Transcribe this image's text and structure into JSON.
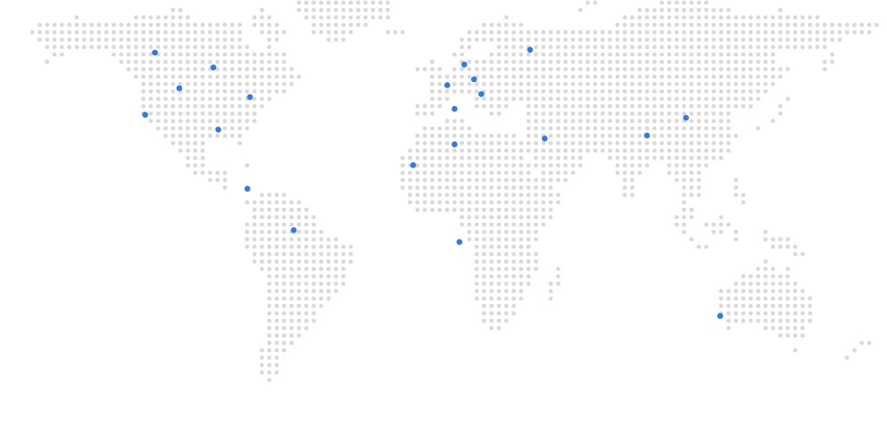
{
  "map": {
    "style": "dotted-world-map",
    "colors": {
      "land_dot": "#d9d9d9",
      "marker": "#2f7be5",
      "background": "#ffffff"
    },
    "grid_spacing": 8.3,
    "markers": [
      {
        "id": "north-america-north",
        "lat": 59,
        "lon": -117
      },
      {
        "id": "north-america-canada-east",
        "lat": 54,
        "lon": -93
      },
      {
        "id": "north-america-west",
        "lat": 47,
        "lon": -107
      },
      {
        "id": "north-america-east",
        "lat": 44,
        "lon": -78
      },
      {
        "id": "north-america-pacific",
        "lat": 38,
        "lon": -121
      },
      {
        "id": "north-america-south",
        "lat": 33,
        "lon": -91
      },
      {
        "id": "south-america-north",
        "lat": 13,
        "lon": -79
      },
      {
        "id": "south-america-brazil",
        "lat": -1,
        "lon": -60
      },
      {
        "id": "europe-west",
        "lat": 48,
        "lon": 3
      },
      {
        "id": "europe-north",
        "lat": 55,
        "lon": 10
      },
      {
        "id": "europe-central",
        "lat": 50,
        "lon": 14
      },
      {
        "id": "europe-east",
        "lat": 45,
        "lon": 17
      },
      {
        "id": "europe-south",
        "lat": 40,
        "lon": 6
      },
      {
        "id": "russia",
        "lat": 60,
        "lon": 37
      },
      {
        "id": "africa-north",
        "lat": 28,
        "lon": 6
      },
      {
        "id": "africa-west",
        "lat": 21,
        "lon": -11
      },
      {
        "id": "africa-central",
        "lat": -5,
        "lon": 8
      },
      {
        "id": "middle-east",
        "lat": 30,
        "lon": 43
      },
      {
        "id": "asia-south",
        "lat": 31,
        "lon": 85
      },
      {
        "id": "asia-east",
        "lat": 37,
        "lon": 101
      },
      {
        "id": "australia-south",
        "lat": -30,
        "lon": 115
      }
    ]
  }
}
